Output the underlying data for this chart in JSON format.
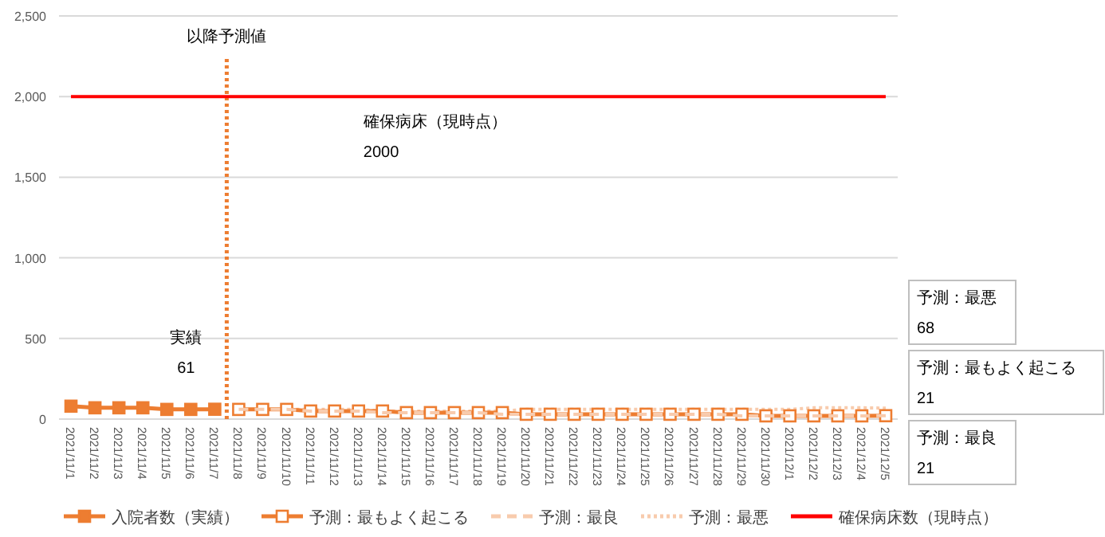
{
  "chart_data": {
    "type": "line",
    "categories": [
      "2021/11/1",
      "2021/11/2",
      "2021/11/3",
      "2021/11/4",
      "2021/11/5",
      "2021/11/6",
      "2021/11/7",
      "2021/11/8",
      "2021/11/9",
      "2021/11/10",
      "2021/11/11",
      "2021/11/12",
      "2021/11/13",
      "2021/11/14",
      "2021/11/15",
      "2021/11/16",
      "2021/11/17",
      "2021/11/18",
      "2021/11/19",
      "2021/11/20",
      "2021/11/21",
      "2021/11/22",
      "2021/11/23",
      "2021/11/24",
      "2021/11/25",
      "2021/11/26",
      "2021/11/27",
      "2021/11/28",
      "2021/11/29",
      "2021/11/30",
      "2021/12/1",
      "2021/12/2",
      "2021/12/3",
      "2021/12/4",
      "2021/12/5"
    ],
    "series": [
      {
        "name": "入院者数（実績）",
        "color": "#ed7d31",
        "marker": "square",
        "line_style": "solid",
        "values": [
          80,
          70,
          70,
          70,
          60,
          60,
          61,
          null,
          null,
          null,
          null,
          null,
          null,
          null,
          null,
          null,
          null,
          null,
          null,
          null,
          null,
          null,
          null,
          null,
          null,
          null,
          null,
          null,
          null,
          null,
          null,
          null,
          null,
          null,
          null
        ]
      },
      {
        "name": "予測：最もよく起こる",
        "color": "#ed7d31",
        "marker": "square",
        "line_style": "solid",
        "values": [
          null,
          null,
          null,
          null,
          null,
          null,
          null,
          60,
          60,
          60,
          50,
          50,
          50,
          50,
          40,
          40,
          40,
          40,
          40,
          30,
          30,
          30,
          30,
          30,
          30,
          30,
          30,
          30,
          30,
          20,
          20,
          20,
          20,
          20,
          21
        ]
      },
      {
        "name": "予測：最良",
        "color": "#f8cbad",
        "marker": "none",
        "line_style": "dashed",
        "values": [
          null,
          null,
          null,
          null,
          null,
          null,
          null,
          60,
          60,
          60,
          50,
          50,
          50,
          40,
          40,
          40,
          40,
          40,
          30,
          30,
          30,
          30,
          30,
          30,
          30,
          30,
          30,
          30,
          20,
          20,
          20,
          20,
          20,
          20,
          21
        ]
      },
      {
        "name": "予測：最悪",
        "color": "#f8cbad",
        "marker": "none",
        "line_style": "dotted",
        "values": [
          null,
          null,
          null,
          null,
          null,
          null,
          null,
          60,
          60,
          60,
          60,
          60,
          60,
          50,
          50,
          50,
          50,
          50,
          50,
          60,
          60,
          60,
          60,
          60,
          60,
          60,
          60,
          60,
          60,
          60,
          60,
          70,
          70,
          70,
          68
        ]
      },
      {
        "name": "確保病床数（現時点）",
        "color": "#ff0000",
        "marker": "none",
        "line_style": "solid",
        "values": [
          2000,
          2000,
          2000,
          2000,
          2000,
          2000,
          2000,
          2000,
          2000,
          2000,
          2000,
          2000,
          2000,
          2000,
          2000,
          2000,
          2000,
          2000,
          2000,
          2000,
          2000,
          2000,
          2000,
          2000,
          2000,
          2000,
          2000,
          2000,
          2000,
          2000,
          2000,
          2000,
          2000,
          2000,
          2000
        ]
      }
    ],
    "ylim": [
      0,
      2500
    ],
    "yticks": [
      {
        "value": 0,
        "label": "0"
      },
      {
        "value": 500,
        "label": "500"
      },
      {
        "value": 1000,
        "label": "1,000"
      },
      {
        "value": 1500,
        "label": "1,500"
      },
      {
        "value": 2000,
        "label": "2,000"
      },
      {
        "value": 2500,
        "label": "2,500"
      }
    ],
    "grid": "y",
    "legend": "bottom",
    "ref_lines": [
      {
        "axis": "x",
        "value": "2021/11/8",
        "label": "以降予測値",
        "color": "#ed7d31",
        "line_style": "dotted"
      }
    ],
    "annotations": [
      {
        "text": "実績\n61",
        "x": "2021/11/7",
        "y": 61
      },
      {
        "text": "確保病床（現時点）\n2000",
        "x": "2021/11/15",
        "y": 2000
      },
      "予測：最悪\n68",
      "予測：最もよく起こる\n21",
      "予測：最良\n21"
    ]
  }
}
